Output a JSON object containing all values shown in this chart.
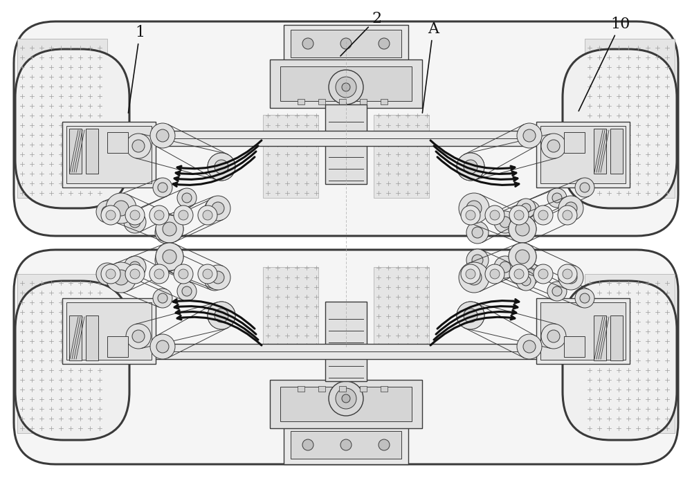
{
  "bg_color": "#ffffff",
  "border_color": "#4a4a4a",
  "line_color": "#3a3a3a",
  "fill_light": "#e8e8e8",
  "fill_medium": "#d0d0d0",
  "fill_cross": "#c8c8c8",
  "label_1": "1",
  "label_2": "2",
  "label_A": "A",
  "label_10": "10",
  "figsize": [
    10.0,
    7.01
  ],
  "dpi": 100
}
